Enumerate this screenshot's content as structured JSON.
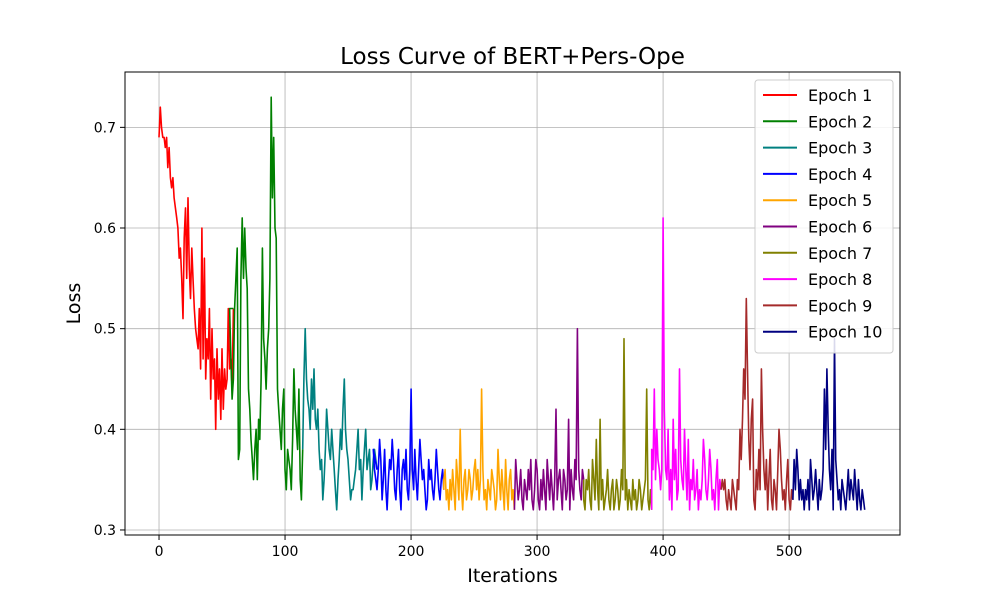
{
  "chart_data": {
    "type": "line",
    "title": "Loss Curve of BERT+Pers-Ope",
    "xlabel": "Iterations",
    "ylabel": "Loss",
    "xlim": [
      -27,
      588
    ],
    "ylim": [
      0.295,
      0.755
    ],
    "xticks": [
      0,
      100,
      200,
      300,
      400,
      500
    ],
    "yticks": [
      0.3,
      0.4,
      0.5,
      0.6,
      0.7
    ],
    "ytick_labels": [
      "0.3",
      "0.4",
      "0.5",
      "0.6",
      "0.7"
    ],
    "grid": true,
    "legend_position": "top-right",
    "series": [
      {
        "name": "Epoch 1",
        "color": "#ff0000",
        "x_start": 0,
        "values": [
          0.69,
          0.72,
          0.7,
          0.69,
          0.69,
          0.68,
          0.69,
          0.66,
          0.68,
          0.65,
          0.64,
          0.65,
          0.63,
          0.62,
          0.61,
          0.6,
          0.57,
          0.58,
          0.55,
          0.51,
          0.59,
          0.62,
          0.55,
          0.63,
          0.56,
          0.53,
          0.58,
          0.55,
          0.52,
          0.5,
          0.49,
          0.48,
          0.52,
          0.46,
          0.6,
          0.47,
          0.57,
          0.45,
          0.49,
          0.47,
          0.52,
          0.43,
          0.5,
          0.45,
          0.47,
          0.4,
          0.48,
          0.43,
          0.46,
          0.41,
          0.48,
          0.42,
          0.46,
          0.44,
          0.45,
          0.52,
          0.46,
          0.47,
          0.44,
          0.52
        ]
      },
      {
        "name": "Epoch 2",
        "color": "#008000",
        "x_start": 56,
        "values": [
          0.52,
          0.47,
          0.43,
          0.45,
          0.52,
          0.55,
          0.58,
          0.37,
          0.38,
          0.55,
          0.61,
          0.55,
          0.6,
          0.56,
          0.54,
          0.44,
          0.42,
          0.39,
          0.37,
          0.35,
          0.38,
          0.4,
          0.35,
          0.41,
          0.39,
          0.45,
          0.58,
          0.49,
          0.47,
          0.44,
          0.48,
          0.5,
          0.55,
          0.73,
          0.63,
          0.69,
          0.6,
          0.59,
          0.44,
          0.42,
          0.4,
          0.38,
          0.42,
          0.44,
          0.36,
          0.34,
          0.38,
          0.37,
          0.36,
          0.34,
          0.39,
          0.46,
          0.42,
          0.4,
          0.38,
          0.44,
          0.35,
          0.33,
          0.38
        ]
      },
      {
        "name": "Epoch 3",
        "color": "#008080",
        "x_start": 114,
        "values": [
          0.38,
          0.45,
          0.5,
          0.45,
          0.43,
          0.42,
          0.4,
          0.45,
          0.42,
          0.46,
          0.41,
          0.4,
          0.42,
          0.38,
          0.36,
          0.37,
          0.33,
          0.35,
          0.38,
          0.42,
          0.4,
          0.38,
          0.37,
          0.4,
          0.38,
          0.36,
          0.34,
          0.32,
          0.35,
          0.37,
          0.4,
          0.38,
          0.42,
          0.45,
          0.4,
          0.38,
          0.37,
          0.35,
          0.33,
          0.34,
          0.34,
          0.35,
          0.36,
          0.38,
          0.4,
          0.36,
          0.37,
          0.33,
          0.36,
          0.38,
          0.4,
          0.36,
          0.37,
          0.38,
          0.34,
          0.35,
          0.37,
          0.38,
          0.37,
          0.36
        ]
      },
      {
        "name": "Epoch 4",
        "color": "#0000ff",
        "x_start": 170,
        "values": [
          0.38,
          0.36,
          0.35,
          0.34,
          0.36,
          0.39,
          0.37,
          0.33,
          0.35,
          0.38,
          0.34,
          0.32,
          0.35,
          0.37,
          0.36,
          0.39,
          0.37,
          0.34,
          0.33,
          0.36,
          0.38,
          0.34,
          0.32,
          0.36,
          0.37,
          0.35,
          0.38,
          0.34,
          0.33,
          0.36,
          0.44,
          0.36,
          0.34,
          0.38,
          0.35,
          0.33,
          0.36,
          0.39,
          0.37,
          0.35,
          0.36,
          0.34,
          0.32,
          0.33,
          0.37,
          0.35,
          0.36,
          0.34,
          0.33,
          0.35,
          0.38,
          0.36,
          0.34,
          0.33,
          0.35,
          0.36,
          0.34
        ]
      },
      {
        "name": "Epoch 5",
        "color": "#ffa500",
        "x_start": 226,
        "values": [
          0.35,
          0.36,
          0.33,
          0.34,
          0.32,
          0.35,
          0.33,
          0.36,
          0.34,
          0.32,
          0.37,
          0.35,
          0.33,
          0.4,
          0.34,
          0.32,
          0.35,
          0.36,
          0.33,
          0.34,
          0.36,
          0.35,
          0.33,
          0.34,
          0.36,
          0.37,
          0.34,
          0.36,
          0.33,
          0.35,
          0.44,
          0.36,
          0.33,
          0.34,
          0.32,
          0.35,
          0.34,
          0.33,
          0.36,
          0.35,
          0.34,
          0.32,
          0.33,
          0.38,
          0.35,
          0.33,
          0.36,
          0.34,
          0.32,
          0.37,
          0.34,
          0.32,
          0.35,
          0.36,
          0.33,
          0.34,
          0.32
        ]
      },
      {
        "name": "Epoch 6",
        "color": "#800080",
        "x_start": 283,
        "values": [
          0.37,
          0.35,
          0.33,
          0.34,
          0.36,
          0.33,
          0.32,
          0.35,
          0.34,
          0.33,
          0.36,
          0.34,
          0.37,
          0.33,
          0.32,
          0.34,
          0.37,
          0.36,
          0.33,
          0.32,
          0.35,
          0.33,
          0.36,
          0.34,
          0.32,
          0.37,
          0.35,
          0.33,
          0.36,
          0.34,
          0.32,
          0.35,
          0.42,
          0.33,
          0.35,
          0.36,
          0.34,
          0.32,
          0.36,
          0.35,
          0.33,
          0.34,
          0.41,
          0.32,
          0.36,
          0.34,
          0.33,
          0.37,
          0.35,
          0.5,
          0.36,
          0.34,
          0.33,
          0.36,
          0.35
        ]
      },
      {
        "name": "Epoch 7",
        "color": "#808000",
        "x_start": 337,
        "values": [
          0.33,
          0.32,
          0.35,
          0.34,
          0.36,
          0.33,
          0.32,
          0.37,
          0.35,
          0.33,
          0.39,
          0.34,
          0.32,
          0.41,
          0.33,
          0.35,
          0.32,
          0.33,
          0.34,
          0.36,
          0.33,
          0.32,
          0.34,
          0.35,
          0.32,
          0.33,
          0.35,
          0.34,
          0.32,
          0.33,
          0.36,
          0.34,
          0.49,
          0.33,
          0.35,
          0.32,
          0.34,
          0.33,
          0.32,
          0.35,
          0.33,
          0.34,
          0.32,
          0.33,
          0.35,
          0.34,
          0.32,
          0.33,
          0.34,
          0.35,
          0.44,
          0.33,
          0.32,
          0.34,
          0.32
        ]
      },
      {
        "name": "Epoch 8",
        "color": "#ff00ff",
        "x_start": 391,
        "values": [
          0.38,
          0.36,
          0.44,
          0.35,
          0.4,
          0.37,
          0.36,
          0.34,
          0.36,
          0.61,
          0.42,
          0.36,
          0.35,
          0.4,
          0.33,
          0.36,
          0.32,
          0.41,
          0.35,
          0.38,
          0.33,
          0.34,
          0.46,
          0.37,
          0.35,
          0.34,
          0.4,
          0.36,
          0.33,
          0.39,
          0.32,
          0.35,
          0.34,
          0.37,
          0.33,
          0.34,
          0.36,
          0.32,
          0.34,
          0.33,
          0.35,
          0.39,
          0.37,
          0.34,
          0.33,
          0.35,
          0.38,
          0.36,
          0.33,
          0.34,
          0.32,
          0.35,
          0.37,
          0.32,
          0.35,
          0.34
        ]
      },
      {
        "name": "Epoch 9",
        "color": "#a52a2a",
        "x_start": 447,
        "values": [
          0.35,
          0.34,
          0.35,
          0.33,
          0.32,
          0.34,
          0.33,
          0.32,
          0.35,
          0.34,
          0.33,
          0.32,
          0.35,
          0.34,
          0.4,
          0.37,
          0.41,
          0.46,
          0.43,
          0.53,
          0.46,
          0.39,
          0.36,
          0.41,
          0.43,
          0.33,
          0.32,
          0.36,
          0.34,
          0.38,
          0.34,
          0.46,
          0.4,
          0.36,
          0.34,
          0.37,
          0.32,
          0.35,
          0.38,
          0.33,
          0.32,
          0.35,
          0.34,
          0.32,
          0.36,
          0.4,
          0.38,
          0.35,
          0.33,
          0.34,
          0.32,
          0.35,
          0.37,
          0.33,
          0.32,
          0.34,
          0.33
        ]
      },
      {
        "name": "Epoch 10",
        "color": "#000080",
        "x_start": 504,
        "values": [
          0.37,
          0.34,
          0.38,
          0.36,
          0.33,
          0.35,
          0.33,
          0.34,
          0.32,
          0.34,
          0.33,
          0.35,
          0.32,
          0.37,
          0.35,
          0.33,
          0.34,
          0.36,
          0.34,
          0.32,
          0.35,
          0.33,
          0.34,
          0.36,
          0.44,
          0.38,
          0.46,
          0.4,
          0.36,
          0.34,
          0.38,
          0.32,
          0.49,
          0.37,
          0.35,
          0.33,
          0.34,
          0.32,
          0.35,
          0.34,
          0.33,
          0.32,
          0.34,
          0.36,
          0.33,
          0.35,
          0.34,
          0.33,
          0.36,
          0.34,
          0.32,
          0.35,
          0.33,
          0.32,
          0.34,
          0.33,
          0.32
        ]
      }
    ]
  }
}
